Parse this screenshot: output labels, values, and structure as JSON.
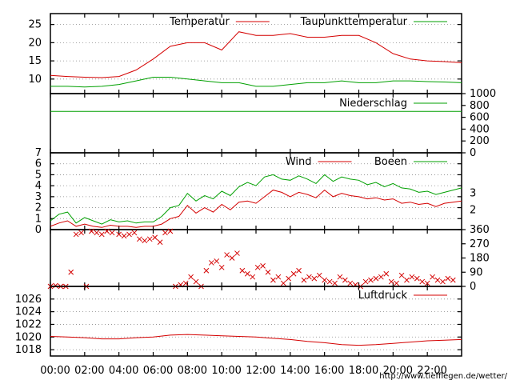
{
  "colors": {
    "red": "#d40000",
    "green": "#00a000"
  },
  "footer_url": "http://www.tiefflegen.de/wetter/",
  "chart_data": [
    {
      "type": "line",
      "name": "temperature-panel",
      "title": "",
      "x": [
        0,
        1,
        2,
        3,
        4,
        5,
        6,
        7,
        8,
        9,
        10,
        11,
        12,
        13,
        14,
        15,
        16,
        17,
        18,
        19,
        20,
        21,
        22,
        23,
        24
      ],
      "ylim": [
        6,
        28
      ],
      "yticks": [
        "10",
        "15",
        "20",
        "25"
      ],
      "ytick_values": [
        10,
        15,
        20,
        25
      ],
      "series": [
        {
          "name": "Temperatur",
          "color": "red",
          "values": [
            11,
            10.7,
            10.5,
            10.4,
            10.7,
            12.5,
            15.5,
            19,
            20,
            20,
            18,
            23,
            22,
            22,
            22.5,
            21.5,
            21.5,
            22,
            22,
            20,
            17,
            15.5,
            15,
            14.8,
            14.5
          ]
        },
        {
          "name": "Taupunkttemperatur",
          "color": "green",
          "values": [
            8,
            8,
            7.8,
            8,
            8.5,
            9.5,
            10.5,
            10.5,
            10,
            9.5,
            9,
            9,
            8,
            8,
            8.5,
            9,
            9,
            9.5,
            9,
            9,
            9.5,
            9.5,
            9.3,
            9.2,
            9
          ]
        }
      ]
    },
    {
      "type": "line",
      "name": "precipitation-panel",
      "title": "",
      "x": [
        0,
        24
      ],
      "ylim": [
        0,
        1000
      ],
      "yticks": [
        "0",
        "200",
        "400",
        "600",
        "800",
        "1000"
      ],
      "ytick_values": [
        0,
        200,
        400,
        600,
        800,
        1000
      ],
      "series": [
        {
          "name": "Niederschlag",
          "color": "green",
          "values": [
            700,
            700
          ]
        }
      ]
    },
    {
      "type": "line",
      "name": "wind-panel",
      "title": "",
      "x": [
        0,
        0.5,
        1,
        1.5,
        2,
        2.5,
        3,
        3.5,
        4,
        4.5,
        5,
        5.5,
        6,
        6.5,
        7,
        7.5,
        8,
        8.5,
        9,
        9.5,
        10,
        10.5,
        11,
        11.5,
        12,
        12.5,
        13,
        13.5,
        14,
        14.5,
        15,
        15.5,
        16,
        16.5,
        17,
        17.5,
        18,
        18.5,
        19,
        19.5,
        20,
        20.5,
        21,
        21.5,
        22,
        22.5,
        23,
        23.5,
        24
      ],
      "ylim": [
        0,
        7
      ],
      "yticks": [
        "0",
        "1",
        "2",
        "3",
        "4",
        "5",
        "6",
        "7"
      ],
      "ytick_values": [
        0,
        1,
        2,
        3,
        4,
        5,
        6,
        7
      ],
      "right_ticks": [
        "2",
        "3"
      ],
      "right_tick_values": [
        1.8,
        3.3
      ],
      "series": [
        {
          "name": "Wind",
          "color": "red",
          "values": [
            0.3,
            0.6,
            0.8,
            0.3,
            0.5,
            0.3,
            0.2,
            0.4,
            0.3,
            0.3,
            0.2,
            0.3,
            0.3,
            0.5,
            1.0,
            1.2,
            2.2,
            1.5,
            2.0,
            1.6,
            2.3,
            1.8,
            2.5,
            2.6,
            2.4,
            3.0,
            3.6,
            3.4,
            3.0,
            3.4,
            3.2,
            2.9,
            3.6,
            3.0,
            3.3,
            3.1,
            3.0,
            2.8,
            2.9,
            2.7,
            2.8,
            2.4,
            2.5,
            2.3,
            2.4,
            2.1,
            2.4,
            2.5,
            2.6
          ]
        },
        {
          "name": "Boeen",
          "color": "green",
          "values": [
            0.8,
            1.4,
            1.6,
            0.6,
            1.1,
            0.8,
            0.5,
            0.9,
            0.7,
            0.8,
            0.6,
            0.7,
            0.7,
            1.2,
            2.0,
            2.2,
            3.3,
            2.6,
            3.1,
            2.8,
            3.5,
            3.1,
            3.9,
            4.3,
            4.0,
            4.8,
            5.0,
            4.6,
            4.5,
            4.9,
            4.6,
            4.2,
            5.0,
            4.4,
            4.8,
            4.6,
            4.5,
            4.1,
            4.3,
            3.9,
            4.2,
            3.8,
            3.7,
            3.4,
            3.5,
            3.2,
            3.4,
            3.6,
            3.8
          ]
        }
      ]
    },
    {
      "type": "scatter",
      "name": "wind-direction-panel",
      "title": "",
      "ylim": [
        0,
        360
      ],
      "yticks": [
        "0",
        "90",
        "180",
        "270",
        "360"
      ],
      "ytick_values": [
        0,
        90,
        180,
        270,
        360
      ],
      "series": [
        {
          "name": "",
          "color": "red",
          "x": [
            0,
            0.3,
            0.6,
            0.9,
            1.2,
            1.5,
            1.8,
            2.1,
            2.4,
            2.7,
            3.0,
            3.3,
            3.6,
            4.0,
            4.3,
            4.6,
            4.9,
            5.2,
            5.5,
            5.8,
            6.1,
            6.4,
            6.7,
            7.0,
            7.3,
            7.6,
            7.9,
            8.2,
            8.5,
            8.8,
            9.1,
            9.4,
            9.7,
            10.0,
            10.3,
            10.6,
            10.9,
            11.2,
            11.5,
            11.8,
            12.1,
            12.4,
            12.7,
            13.0,
            13.3,
            13.6,
            13.9,
            14.2,
            14.5,
            14.8,
            15.1,
            15.4,
            15.7,
            16.0,
            16.3,
            16.6,
            16.9,
            17.2,
            17.5,
            17.8,
            18.1,
            18.4,
            18.7,
            19.0,
            19.3,
            19.6,
            19.9,
            20.2,
            20.5,
            20.8,
            21.1,
            21.4,
            21.7,
            22.0,
            22.3,
            22.6,
            22.9,
            23.2,
            23.5
          ],
          "y": [
            0,
            5,
            0,
            0,
            90,
            330,
            340,
            0,
            350,
            340,
            330,
            350,
            340,
            330,
            320,
            330,
            340,
            300,
            290,
            300,
            310,
            280,
            340,
            350,
            0,
            10,
            20,
            60,
            30,
            0,
            100,
            150,
            160,
            120,
            200,
            180,
            210,
            100,
            80,
            60,
            120,
            130,
            90,
            40,
            60,
            20,
            50,
            80,
            100,
            40,
            60,
            50,
            70,
            40,
            30,
            20,
            60,
            40,
            20,
            10,
            0,
            30,
            40,
            50,
            60,
            80,
            30,
            20,
            70,
            40,
            60,
            50,
            30,
            20,
            60,
            40,
            30,
            50,
            40
          ]
        }
      ]
    },
    {
      "type": "line",
      "name": "pressure-panel",
      "title": "",
      "x": [
        0,
        1,
        2,
        3,
        4,
        5,
        6,
        7,
        8,
        9,
        10,
        11,
        12,
        13,
        14,
        15,
        16,
        17,
        18,
        19,
        20,
        21,
        22,
        23,
        24
      ],
      "ylim": [
        1017,
        1028
      ],
      "yticks": [
        "1018",
        "1020",
        "1022",
        "1024",
        "1026"
      ],
      "ytick_values": [
        1018,
        1020,
        1022,
        1024,
        1026
      ],
      "series": [
        {
          "name": "Luftdruck",
          "color": "red",
          "values": [
            1020.1,
            1020.0,
            1019.9,
            1019.7,
            1019.7,
            1019.9,
            1020.0,
            1020.3,
            1020.4,
            1020.3,
            1020.2,
            1020.1,
            1020.0,
            1019.8,
            1019.6,
            1019.3,
            1019.1,
            1018.8,
            1018.7,
            1018.8,
            1019.0,
            1019.2,
            1019.4,
            1019.5,
            1019.6
          ]
        }
      ]
    }
  ],
  "x_axis": {
    "tick_labels": [
      "00:00",
      "02:00",
      "04:00",
      "06:00",
      "08:00",
      "10:00",
      "12:00",
      "14:00",
      "16:00",
      "18:00",
      "20:00",
      "22:00"
    ],
    "tick_values": [
      0,
      2,
      4,
      6,
      8,
      10,
      12,
      14,
      16,
      18,
      20,
      22
    ],
    "range": [
      0,
      24
    ]
  }
}
